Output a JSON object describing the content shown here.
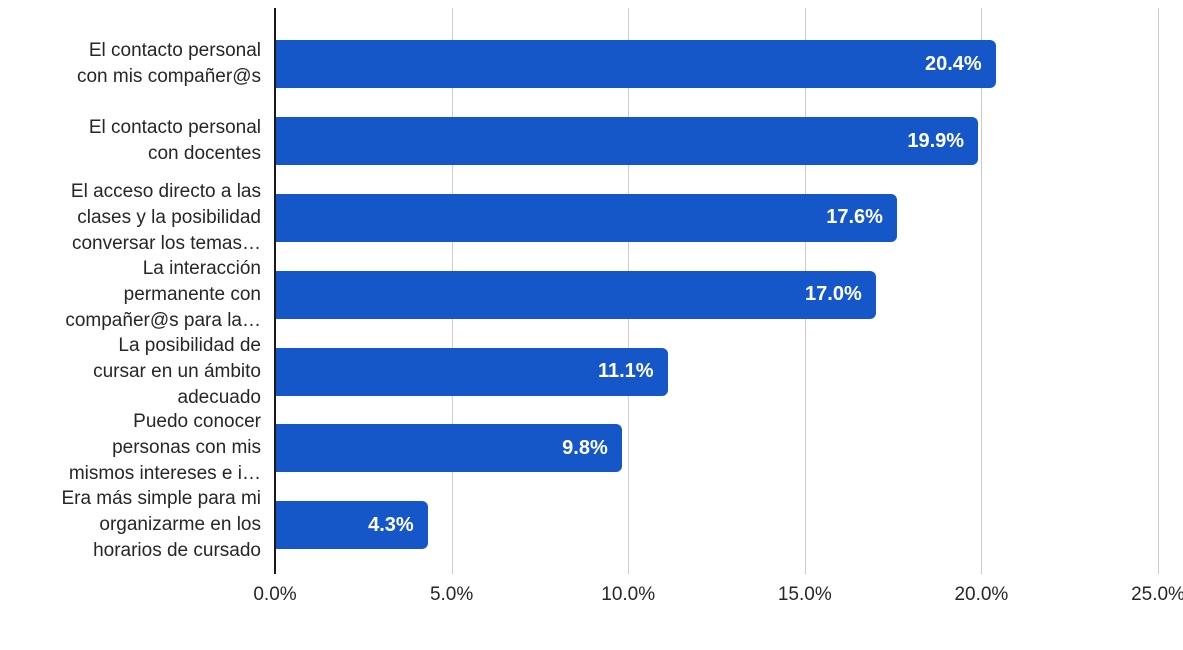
{
  "chart_data": {
    "type": "bar",
    "orientation": "horizontal",
    "title": "",
    "xlabel": "",
    "ylabel": "",
    "xlim": [
      0,
      25
    ],
    "grid": "vertical-on",
    "legend": "none",
    "categories": [
      "El contacto personal con mis compañer@s",
      "El contacto personal con docentes",
      "El acceso directo a las clases y la posibilidad conversar los temas…",
      "La interacción permanente con compañer@s para la…",
      "La posibilidad de cursar en un ámbito adecuado",
      "Puedo conocer personas con mis mismos intereses e i…",
      "Era más simple para mi organizarme en los horarios de cursado"
    ],
    "category_lines": [
      [
        "El contacto personal",
        "con mis compañer@s"
      ],
      [
        "El contacto personal",
        "con docentes"
      ],
      [
        "El acceso directo a las",
        "clases y la posibilidad",
        "conversar los temas…"
      ],
      [
        "La interacción",
        "permanente con",
        "compañer@s para la…"
      ],
      [
        "La posibilidad de",
        "cursar en un ámbito",
        "adecuado"
      ],
      [
        "Puedo conocer",
        "personas con mis",
        "mismos intereses e i…"
      ],
      [
        "Era más simple para mi",
        "organizarme en los",
        "horarios de cursado"
      ]
    ],
    "values": [
      20.4,
      19.9,
      17.6,
      17.0,
      11.1,
      9.8,
      4.3
    ],
    "value_labels": [
      "20.4%",
      "19.9%",
      "17.6%",
      "17.0%",
      "11.1%",
      "9.8%",
      "4.3%"
    ],
    "x_ticks": [
      "0.0%",
      "5.0%",
      "10.0%",
      "15.0%",
      "20.0%",
      "25.0%"
    ],
    "x_tick_values": [
      0,
      5,
      10,
      15,
      20,
      25
    ],
    "colors": {
      "bar": "#1557C9",
      "gridline": "#CCCCCC",
      "axis_line": "#1A1A1A",
      "category_text": "#262626",
      "tick_text": "#262626",
      "value_text": "#FFFFFF",
      "background": "#FFFFFF"
    }
  }
}
